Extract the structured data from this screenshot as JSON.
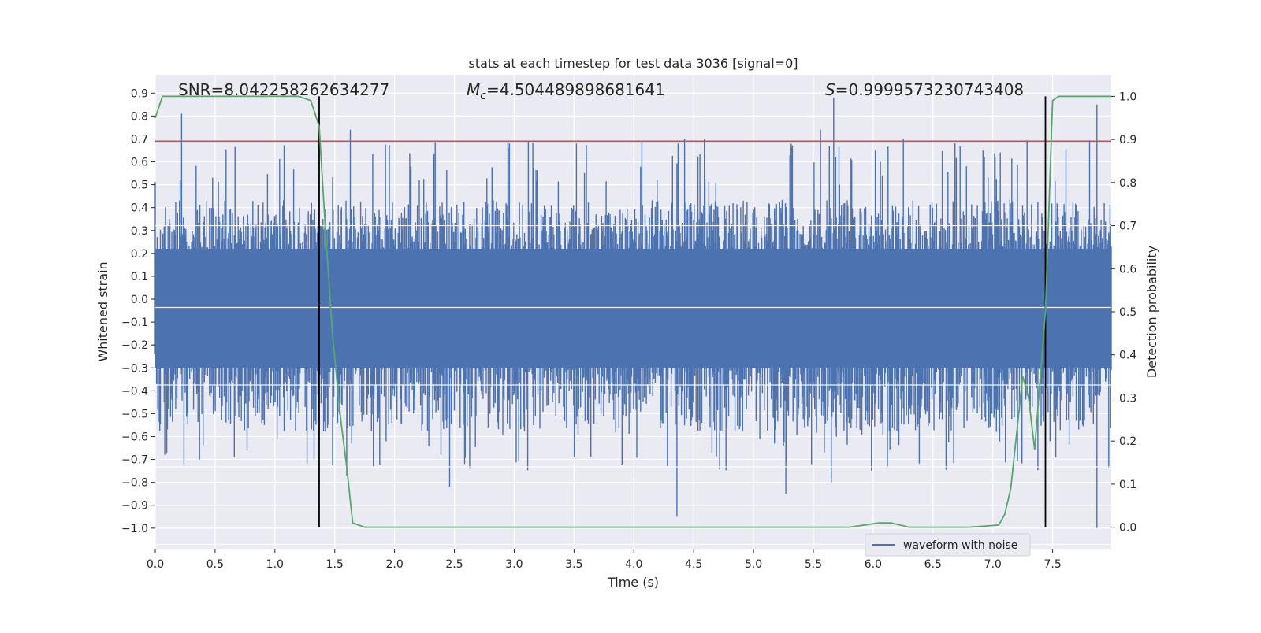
{
  "chart_data": {
    "type": "line",
    "title": "stats at each timestep for test data 3036 [signal=0]",
    "xlabel": "Time (s)",
    "ylabel": "Whitened strain",
    "y2label": "Detection probability",
    "xlim": [
      0.0,
      7.99
    ],
    "ylim": [
      -1.09,
      0.98
    ],
    "y2lim": [
      -0.05,
      1.05
    ],
    "xticks": [
      "0.0",
      "0.5",
      "1.0",
      "1.5",
      "2.0",
      "2.5",
      "3.0",
      "3.5",
      "4.0",
      "4.5",
      "5.0",
      "5.5",
      "6.0",
      "6.5",
      "7.0",
      "7.5"
    ],
    "xtick_values": [
      0.0,
      0.5,
      1.0,
      1.5,
      2.0,
      2.5,
      3.0,
      3.5,
      4.0,
      4.5,
      5.0,
      5.5,
      6.0,
      6.5,
      7.0,
      7.5
    ],
    "yticks": [
      "0.9",
      "0.8",
      "0.7",
      "0.6",
      "0.5",
      "0.4",
      "0.3",
      "0.2",
      "0.1",
      "0.0",
      "−0.1",
      "−0.2",
      "−0.3",
      "−0.4",
      "−0.5",
      "−0.6",
      "−0.7",
      "−0.8",
      "−0.9",
      "−1.0"
    ],
    "ytick_values": [
      0.9,
      0.8,
      0.7,
      0.6,
      0.5,
      0.4,
      0.3,
      0.2,
      0.1,
      0.0,
      -0.1,
      -0.2,
      -0.3,
      -0.4,
      -0.5,
      -0.6,
      -0.7,
      -0.8,
      -0.9,
      -1.0
    ],
    "y2ticks": [
      "1.0",
      "0.9",
      "0.8",
      "0.7",
      "0.6",
      "0.5",
      "0.4",
      "0.3",
      "0.2",
      "0.1",
      "0.0"
    ],
    "y2tick_values": [
      1.0,
      0.9,
      0.8,
      0.7,
      0.6,
      0.5,
      0.4,
      0.3,
      0.2,
      0.1,
      0.0
    ],
    "grid": true,
    "legend": {
      "placement": "lower-right",
      "entries": [
        "waveform with noise"
      ]
    },
    "annotations": {
      "snr_prefix": "SNR=",
      "snr_value": "8.042258262634277",
      "mc_symbol": "M",
      "mc_subscript": "c",
      "mc_equals": "=",
      "mc_value": "4.504489898681641",
      "s_symbol": "S",
      "s_equals": "=",
      "s_value": "0.9999573230743408"
    },
    "threshold": {
      "y": 0.69,
      "color": "#c44e52"
    },
    "vlines": [
      1.37,
      7.44
    ],
    "colors": {
      "waveform": "#4c72b0",
      "probability": "#55a868",
      "background": "#eaeaf2",
      "vline": "#000000"
    },
    "series": [
      {
        "name": "waveform with noise",
        "axis": "left",
        "kind": "noise-strain",
        "envelope": {
          "typical_upper": 0.3,
          "typical_lower": -0.4,
          "max": 0.88,
          "min": -1.0
        },
        "peaks": [
          {
            "x": 0.22,
            "y": 0.81
          },
          {
            "x": 1.63,
            "y": 0.74
          },
          {
            "x": 2.96,
            "y": 0.68
          },
          {
            "x": 3.52,
            "y": 0.68
          },
          {
            "x": 4.37,
            "y": 0.68
          },
          {
            "x": 5.56,
            "y": 0.74
          },
          {
            "x": 5.67,
            "y": 0.88
          },
          {
            "x": 7.87,
            "y": 0.85
          },
          {
            "x": 4.36,
            "y": -0.95
          },
          {
            "x": 2.46,
            "y": -0.82
          },
          {
            "x": 5.27,
            "y": -0.85
          },
          {
            "x": 7.87,
            "y": -1.0
          },
          {
            "x": 0.37,
            "y": -0.7
          },
          {
            "x": 1.6,
            "y": -0.77
          },
          {
            "x": 5.65,
            "y": -0.8
          }
        ]
      },
      {
        "name": "",
        "axis": "right",
        "kind": "detection-probability",
        "x": [
          0.0,
          0.06,
          0.15,
          0.5,
          1.0,
          1.2,
          1.3,
          1.37,
          1.42,
          1.48,
          1.55,
          1.6,
          1.65,
          1.75,
          2.0,
          3.0,
          4.0,
          5.0,
          5.8,
          6.05,
          6.15,
          6.3,
          6.5,
          6.8,
          7.05,
          7.1,
          7.15,
          7.2,
          7.25,
          7.3,
          7.35,
          7.44,
          7.5,
          7.55,
          7.6,
          7.99
        ],
        "y": [
          0.95,
          1.0,
          1.0,
          1.0,
          1.0,
          1.0,
          0.99,
          0.93,
          0.7,
          0.45,
          0.25,
          0.14,
          0.01,
          0.0,
          0.0,
          0.0,
          0.0,
          0.0,
          0.0,
          0.01,
          0.01,
          0.0,
          0.0,
          0.0,
          0.005,
          0.03,
          0.09,
          0.22,
          0.35,
          0.3,
          0.18,
          0.5,
          0.99,
          1.0,
          1.0,
          1.0
        ]
      }
    ]
  }
}
